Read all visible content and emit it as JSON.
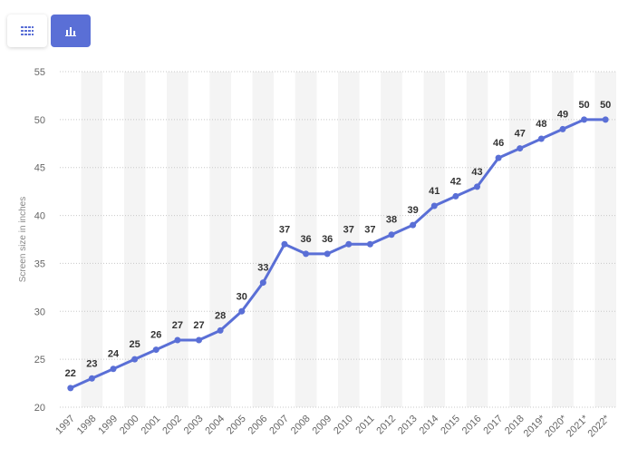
{
  "toolbar": {
    "table_icon": "table-grid-icon",
    "chart_icon": "bar-chart-icon",
    "accent": "#5a6fd6"
  },
  "chart_data": {
    "type": "line",
    "title": "",
    "xlabel": "",
    "ylabel": "Screen size in inches",
    "ylim": [
      20,
      55
    ],
    "yticks": [
      20,
      25,
      30,
      35,
      40,
      45,
      50,
      55
    ],
    "grid": true,
    "line_color": "#5a6fd6",
    "x": [
      "1997",
      "1998",
      "1999",
      "2000",
      "2001",
      "2002",
      "2003",
      "2004",
      "2005",
      "2006",
      "2007",
      "2008",
      "2009",
      "2010",
      "2011",
      "2012",
      "2013",
      "2014",
      "2015",
      "2016",
      "2017",
      "2018",
      "2019*",
      "2020*",
      "2021*",
      "2022*"
    ],
    "series": [
      {
        "values": [
          22,
          23,
          24,
          25,
          26,
          27,
          27,
          28,
          30,
          33,
          37,
          36,
          36,
          37,
          37,
          38,
          39,
          41,
          42,
          43,
          46,
          47,
          48,
          49,
          50,
          50
        ]
      }
    ]
  }
}
